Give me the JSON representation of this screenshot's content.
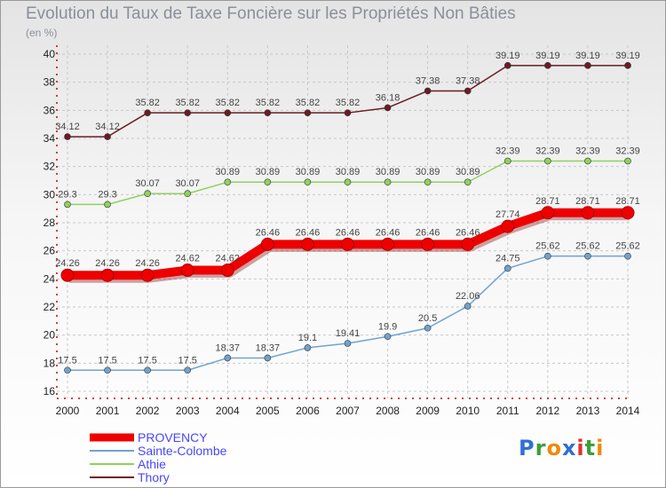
{
  "chart_data": {
    "type": "line",
    "title": "Evolution du Taux de Taxe Foncière sur les Propriétés Non Bâties",
    "ylabel": "(en %)",
    "xlabel": "",
    "ylim": [
      16,
      40
    ],
    "yticks": [
      "16",
      "18",
      "20",
      "22",
      "24",
      "26",
      "28",
      "30",
      "32",
      "34",
      "36",
      "38",
      "40"
    ],
    "x": [
      "2000",
      "2001",
      "2002",
      "2003",
      "2004",
      "2005",
      "2006",
      "2007",
      "2008",
      "2009",
      "2010",
      "2011",
      "2012",
      "2013",
      "2014"
    ],
    "grid": true,
    "legend_position": "bottom-left",
    "series": [
      {
        "name": "Thory",
        "color": "#6b1b24",
        "values": [
          34.12,
          34.12,
          35.82,
          35.82,
          35.82,
          35.82,
          35.82,
          35.82,
          36.18,
          37.38,
          37.38,
          39.19,
          39.19,
          39.19,
          39.19
        ],
        "labels": [
          "34.12",
          "34.12",
          "35.82",
          "35.82",
          "35.82",
          "35.82",
          "35.82",
          "35.82",
          "36.18",
          "37.38",
          "37.38",
          "39.19",
          "39.19",
          "39.19",
          "39.19"
        ]
      },
      {
        "name": "Athie",
        "color": "#8fd15f",
        "values": [
          29.3,
          29.3,
          30.07,
          30.07,
          30.89,
          30.89,
          30.89,
          30.89,
          30.89,
          30.89,
          30.89,
          32.39,
          32.39,
          32.39,
          32.39
        ],
        "labels": [
          "29.3",
          "29.3",
          "30.07",
          "30.07",
          "30.89",
          "30.89",
          "30.89",
          "30.89",
          "30.89",
          "30.89",
          "30.89",
          "32.39",
          "32.39",
          "32.39",
          "32.39"
        ]
      },
      {
        "name": "PROVENCY",
        "color": "#ee0000",
        "values": [
          24.26,
          24.26,
          24.26,
          24.62,
          24.62,
          26.46,
          26.46,
          26.46,
          26.46,
          26.46,
          26.46,
          27.74,
          28.71,
          28.71,
          28.71
        ],
        "labels": [
          "24.26",
          "24.26",
          "24.26",
          "24.62",
          "24.62",
          "26.46",
          "26.46",
          "26.46",
          "26.46",
          "26.46",
          "26.46",
          "27.74",
          "28.71",
          "28.71",
          "28.71"
        ]
      },
      {
        "name": "Sainte-Colombe",
        "color": "#6fa3cf",
        "values": [
          17.5,
          17.5,
          17.5,
          17.5,
          18.37,
          18.37,
          19.1,
          19.41,
          19.9,
          20.5,
          22.06,
          24.75,
          25.62,
          25.62,
          25.62
        ],
        "labels": [
          "17.5",
          "17.5",
          "17.5",
          "17.5",
          "18.37",
          "18.37",
          "19.1",
          "19.41",
          "19.9",
          "20.5",
          "22.06",
          "24.75",
          "25.62",
          "25.62",
          "25.62"
        ]
      }
    ],
    "legend": [
      {
        "name": "PROVENCY",
        "color": "#ee0000",
        "text_color": "#4747ff"
      },
      {
        "name": "Sainte-Colombe",
        "color": "#6fa3cf",
        "text_color": "#4747ff"
      },
      {
        "name": "Athie",
        "color": "#8fd15f",
        "text_color": "#4747ff"
      },
      {
        "name": "Thory",
        "color": "#6b1b24",
        "text_color": "#4747ff"
      }
    ]
  },
  "logo": {
    "letters": [
      "P",
      "r",
      "o",
      "x",
      "i",
      "t",
      "i"
    ],
    "colors": [
      "#2f6fd6",
      "#3aa03a",
      "#f08a00",
      "#2f6fd6",
      "#e03030",
      "#3aa03a",
      "#f08a00"
    ]
  }
}
